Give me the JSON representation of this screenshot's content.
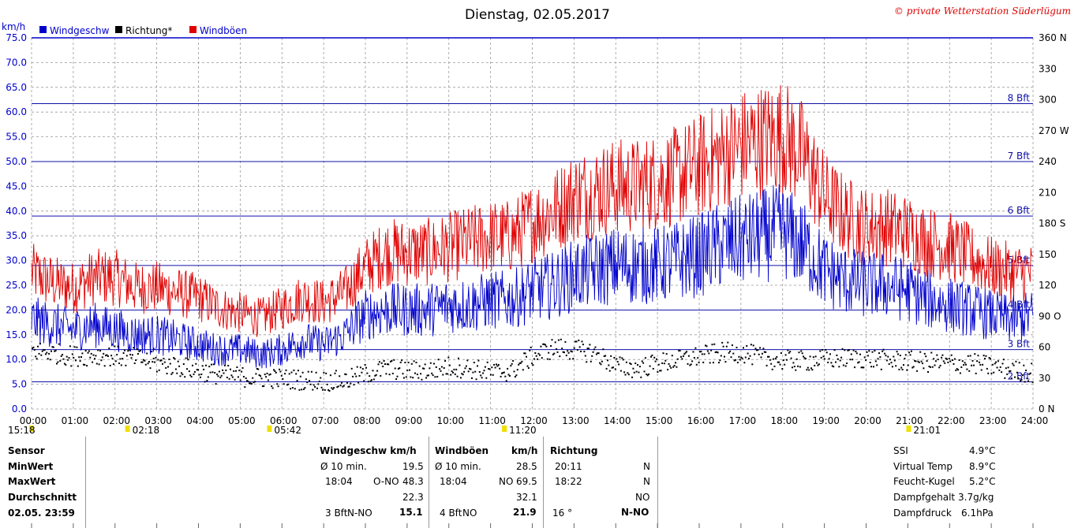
{
  "header": {
    "title": "Dienstag, 02.05.2017",
    "copyright": "© private Wetterstation Süderlügum"
  },
  "colors": {
    "speed": "#0000cc",
    "gust": "#e00000",
    "direction": "#000000",
    "bft_line": "#1010aa",
    "grid": "#999999"
  },
  "chart_data": {
    "type": "line",
    "title": "Dienstag, 02.05.2017",
    "ylabel": "km/h",
    "ylim": [
      0,
      75
    ],
    "y_ticks": [
      "0.0",
      "5.0",
      "10.0",
      "15.0",
      "20.0",
      "25.0",
      "30.0",
      "35.0",
      "40.0",
      "45.0",
      "50.0",
      "55.0",
      "60.0",
      "65.0",
      "70.0",
      "75.0"
    ],
    "x_ticks": [
      "00:00",
      "01:00",
      "02:00",
      "03:00",
      "04:00",
      "05:00",
      "06:00",
      "07:00",
      "08:00",
      "09:00",
      "10:00",
      "11:00",
      "12:00",
      "13:00",
      "14:00",
      "15:00",
      "16:00",
      "17:00",
      "18:00",
      "19:00",
      "20:00",
      "21:00",
      "22:00",
      "23:00",
      "24:00"
    ],
    "xlim_hours": [
      0,
      24
    ],
    "y2lim_deg": [
      0,
      360
    ],
    "y2_ticks": [
      {
        "v": 0,
        "label": "0   N"
      },
      {
        "v": 30,
        "label": "30"
      },
      {
        "v": 60,
        "label": "60"
      },
      {
        "v": 90,
        "label": "90   O"
      },
      {
        "v": 120,
        "label": "120"
      },
      {
        "v": 150,
        "label": "150"
      },
      {
        "v": 180,
        "label": "180 S"
      },
      {
        "v": 210,
        "label": "210"
      },
      {
        "v": 240,
        "label": "240"
      },
      {
        "v": 270,
        "label": "270 W"
      },
      {
        "v": 300,
        "label": "300"
      },
      {
        "v": 330,
        "label": "330"
      },
      {
        "v": 360,
        "label": "360 N"
      }
    ],
    "beaufort_lines": [
      {
        "kmh": 5.5,
        "label": "2 Bft"
      },
      {
        "kmh": 12,
        "label": "3 Bft"
      },
      {
        "kmh": 20,
        "label": "4 Bft"
      },
      {
        "kmh": 29,
        "label": "5 Bft"
      },
      {
        "kmh": 39,
        "label": "6 Bft"
      },
      {
        "kmh": 50,
        "label": "7 Bft"
      },
      {
        "kmh": 61.7,
        "label": "8 Bft"
      }
    ],
    "legend": [
      {
        "name": "Windgeschw",
        "color": "#0000cc"
      },
      {
        "name": "Richtung*",
        "color": "#000000"
      },
      {
        "name": "Windböen",
        "color": "#e00000"
      }
    ],
    "series": [
      {
        "name": "Windgeschw",
        "unit": "km/h",
        "hours": [
          0,
          0.5,
          1,
          1.5,
          2,
          2.5,
          3,
          3.5,
          4,
          4.5,
          5,
          5.5,
          6,
          6.5,
          7,
          7.5,
          8,
          8.5,
          9,
          9.5,
          10,
          10.5,
          11,
          11.5,
          12,
          12.5,
          13,
          13.5,
          14,
          14.5,
          15,
          15.5,
          16,
          16.5,
          17,
          17.5,
          18,
          18.5,
          19,
          19.5,
          20,
          20.5,
          21,
          21.5,
          22,
          22.5,
          23,
          23.5,
          24
        ],
        "values": [
          18,
          17,
          16,
          17,
          16,
          15,
          15,
          14,
          13,
          12,
          12,
          11,
          12,
          14,
          13,
          15,
          19,
          20,
          20,
          20,
          21,
          21,
          22,
          22,
          24,
          25,
          27,
          28,
          29,
          29,
          29,
          30,
          31,
          33,
          34,
          35,
          36,
          33,
          28,
          26,
          25,
          25,
          24,
          22,
          21,
          20,
          19,
          18,
          19
        ]
      },
      {
        "name": "Windböen",
        "unit": "km/h",
        "hours": [
          0,
          0.5,
          1,
          1.5,
          2,
          2.5,
          3,
          3.5,
          4,
          4.5,
          5,
          5.5,
          6,
          6.5,
          7,
          7.5,
          8,
          8.5,
          9,
          9.5,
          10,
          10.5,
          11,
          11.5,
          12,
          12.5,
          13,
          13.5,
          14,
          14.5,
          15,
          15.5,
          16,
          16.5,
          17,
          17.5,
          18,
          18.5,
          19,
          19.5,
          20,
          20.5,
          21,
          21.5,
          22,
          22.5,
          23,
          23.5,
          24
        ],
        "values": [
          27,
          25,
          24,
          26,
          26,
          24,
          24,
          23,
          22,
          20,
          19,
          18,
          20,
          22,
          21,
          23,
          28,
          31,
          31,
          31,
          32,
          33,
          34,
          34,
          37,
          39,
          42,
          43,
          44,
          44,
          45,
          46,
          48,
          50,
          52,
          53,
          54,
          50,
          42,
          38,
          36,
          36,
          35,
          33,
          32,
          30,
          28,
          27,
          27
        ]
      },
      {
        "name": "Richtung*",
        "unit": "deg",
        "hours": [
          0,
          0.5,
          1,
          1.5,
          2,
          2.5,
          3,
          3.5,
          4,
          4.5,
          5,
          5.5,
          6,
          6.5,
          7,
          7.5,
          8,
          8.5,
          9,
          9.5,
          10,
          10.5,
          11,
          11.5,
          12,
          12.5,
          13,
          13.5,
          14,
          14.5,
          15,
          15.5,
          16,
          16.5,
          17,
          17.5,
          18,
          18.5,
          19,
          19.5,
          20,
          20.5,
          21,
          21.5,
          22,
          22.5,
          23,
          23.5,
          24
        ],
        "values": [
          57,
          55,
          52,
          53,
          52,
          50,
          45,
          42,
          38,
          34,
          32,
          31,
          30,
          29,
          28,
          28,
          35,
          40,
          38,
          38,
          42,
          40,
          36,
          38,
          52,
          60,
          58,
          55,
          42,
          40,
          45,
          48,
          52,
          55,
          56,
          50,
          48,
          47,
          49,
          50,
          50,
          48,
          47,
          46,
          45,
          45,
          42,
          38,
          36
        ]
      }
    ],
    "event_marks": [
      {
        "hour": 0,
        "label": "15:18"
      },
      {
        "hour": 2.3,
        "label": "02:18"
      },
      {
        "hour": 5.7,
        "label": "05:42"
      },
      {
        "hour": 11.33,
        "label": "11:20"
      },
      {
        "hour": 21.02,
        "label": "21:01"
      }
    ]
  },
  "stats": {
    "col_sensor": {
      "header": "Sensor",
      "min": "MinWert",
      "max": "MaxWert",
      "avg": "Durchschnitt",
      "date": "02.05. 23:59"
    },
    "col_speed": {
      "header": "Windgeschw  km/h",
      "min_label": "Ø 10 min.",
      "min_val": "19.5",
      "max_time": "18:04",
      "max_dir": "O-NO",
      "max_val": "48.3",
      "avg_val": "22.3",
      "cur_bft": "3 Bft",
      "cur_dir": "N-NO",
      "cur_val": "15.1"
    },
    "col_gust": {
      "header": "Windböen",
      "unit": "km/h",
      "min_label": "Ø 10 min.",
      "min_val": "28.5",
      "max_time": "18:04",
      "max_dir": "NO",
      "max_val": "69.5",
      "avg_val": "32.1",
      "cur_bft": "4 Bft",
      "cur_dir": "NO",
      "cur_val": "21.9"
    },
    "col_dir": {
      "header": "Richtung",
      "min_time": "20:11",
      "min_dir": "N",
      "max_time": "18:22",
      "max_dir": "N",
      "avg_dir": "NO",
      "cur_deg": "16 °",
      "cur_dir": "N-NO"
    },
    "col_misc": {
      "ssi_label": "SSI",
      "ssi_val": "4.9°C",
      "vt_label": "Virtual Temp",
      "vt_val": "8.9°C",
      "fk_label": "Feucht-Kugel",
      "fk_val": "5.2°C",
      "dg_label": "Dampfgehalt",
      "dg_val": "3.7g/kg",
      "dd_label": "Dampfdruck",
      "dd_val": "6.1hPa"
    }
  }
}
